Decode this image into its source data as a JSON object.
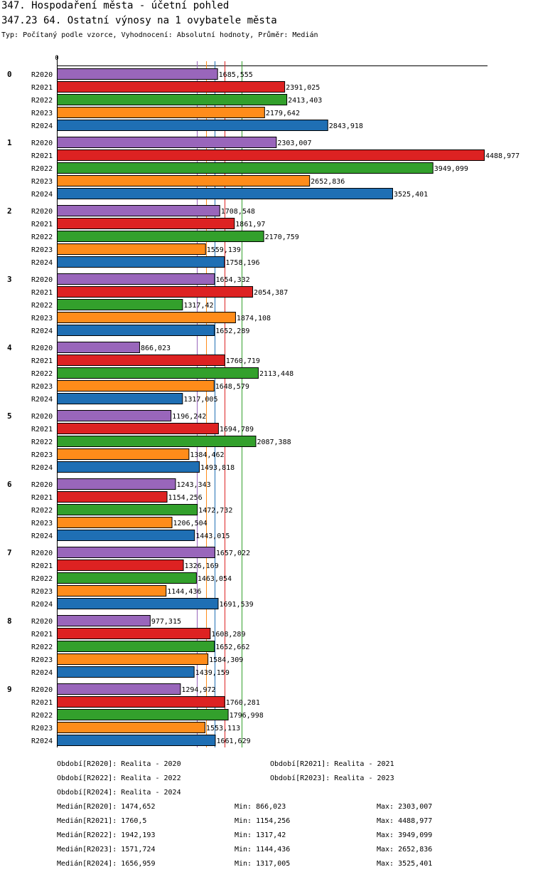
{
  "title": "347. Hospodaření města - účetní pohled",
  "subtitle": "347.23 64. Ostatní výnosy na 1 ovybatele města",
  "info": "Typ: Počítaný podle vzorce, Vyhodnocení: Absolutní hodnoty, Průměr: Medián",
  "chart_data": {
    "type": "bar",
    "orientation": "horizontal",
    "x_tick_label": "0",
    "xlim": [
      0,
      4488.977
    ],
    "categories": [
      "0",
      "1",
      "2",
      "3",
      "4",
      "5",
      "6",
      "7",
      "8",
      "9"
    ],
    "series": [
      {
        "name": "R2020",
        "color": "#9966bb",
        "values": [
          1685.555,
          2303.007,
          1708.548,
          1654.332,
          866.023,
          1196.242,
          1243.343,
          1657.022,
          977.315,
          1294.972
        ],
        "labels": [
          "1685,555",
          "2303,007",
          "1708,548",
          "1654,332",
          "866,023",
          "1196,242",
          "1243,343",
          "1657,022",
          "977,315",
          "1294,972"
        ]
      },
      {
        "name": "R2021",
        "color": "#dd2222",
        "values": [
          2391.025,
          4488.977,
          1861.97,
          2054.387,
          1760.719,
          1694.789,
          1154.256,
          1326.169,
          1608.289,
          1760.281
        ],
        "labels": [
          "2391,025",
          "4488,977",
          "1861,97",
          "2054,387",
          "1760,719",
          "1694,789",
          "1154,256",
          "1326,169",
          "1608,289",
          "1760,281"
        ]
      },
      {
        "name": "R2022",
        "color": "#33a02c",
        "values": [
          2413.403,
          3949.099,
          2170.759,
          1317.42,
          2113.448,
          2087.388,
          1472.732,
          1463.054,
          1652.662,
          1796.998
        ],
        "labels": [
          "2413,403",
          "3949,099",
          "2170,759",
          "1317,42",
          "2113,448",
          "2087,388",
          "1472,732",
          "1463,054",
          "1652,662",
          "1796,998"
        ]
      },
      {
        "name": "R2023",
        "color": "#ff8c1a",
        "values": [
          2179.642,
          2652.836,
          1559.139,
          1874.108,
          1648.579,
          1384.462,
          1206.504,
          1144.436,
          1584.309,
          1553.113
        ],
        "labels": [
          "2179,642",
          "2652,836",
          "1559,139",
          "1874,108",
          "1648,579",
          "1384,462",
          "1206,504",
          "1144,436",
          "1584,309",
          "1553,113"
        ]
      },
      {
        "name": "R2024",
        "color": "#1f6fb4",
        "values": [
          2843.918,
          3525.401,
          1758.196,
          1652.289,
          1317.005,
          1493.818,
          1443.015,
          1691.539,
          1439.159,
          1661.629
        ],
        "labels": [
          "2843,918",
          "3525,401",
          "1758,196",
          "1652,289",
          "1317,005",
          "1493,818",
          "1443,015",
          "1691,539",
          "1439,159",
          "1661,629"
        ]
      }
    ],
    "median_lines": [
      {
        "series": "R2020",
        "value": 1474.652,
        "color": "#9966bb"
      },
      {
        "series": "R2021",
        "value": 1760.5,
        "color": "#dd2222"
      },
      {
        "series": "R2022",
        "value": 1942.193,
        "color": "#33a02c"
      },
      {
        "series": "R2023",
        "value": 1571.724,
        "color": "#ff8c1a"
      },
      {
        "series": "R2024",
        "value": 1656.959,
        "color": "#1f6fb4"
      }
    ]
  },
  "legend": {
    "periods": [
      "Období[R2020]: Realita - 2020",
      "Období[R2021]: Realita - 2021",
      "Období[R2022]: Realita - 2022",
      "Období[R2023]: Realita - 2023",
      "Období[R2024]: Realita - 2024"
    ],
    "stats": [
      {
        "median": "Medián[R2020]: 1474,652",
        "min": "Min: 866,023",
        "max": "Max: 2303,007"
      },
      {
        "median": "Medián[R2021]: 1760,5",
        "min": "Min: 1154,256",
        "max": "Max: 4488,977"
      },
      {
        "median": "Medián[R2022]: 1942,193",
        "min": "Min: 1317,42",
        "max": "Max: 3949,099"
      },
      {
        "median": "Medián[R2023]: 1571,724",
        "min": "Min: 1144,436",
        "max": "Max: 2652,836"
      },
      {
        "median": "Medián[R2024]: 1656,959",
        "min": "Min: 1317,005",
        "max": "Max: 3525,401"
      }
    ]
  }
}
